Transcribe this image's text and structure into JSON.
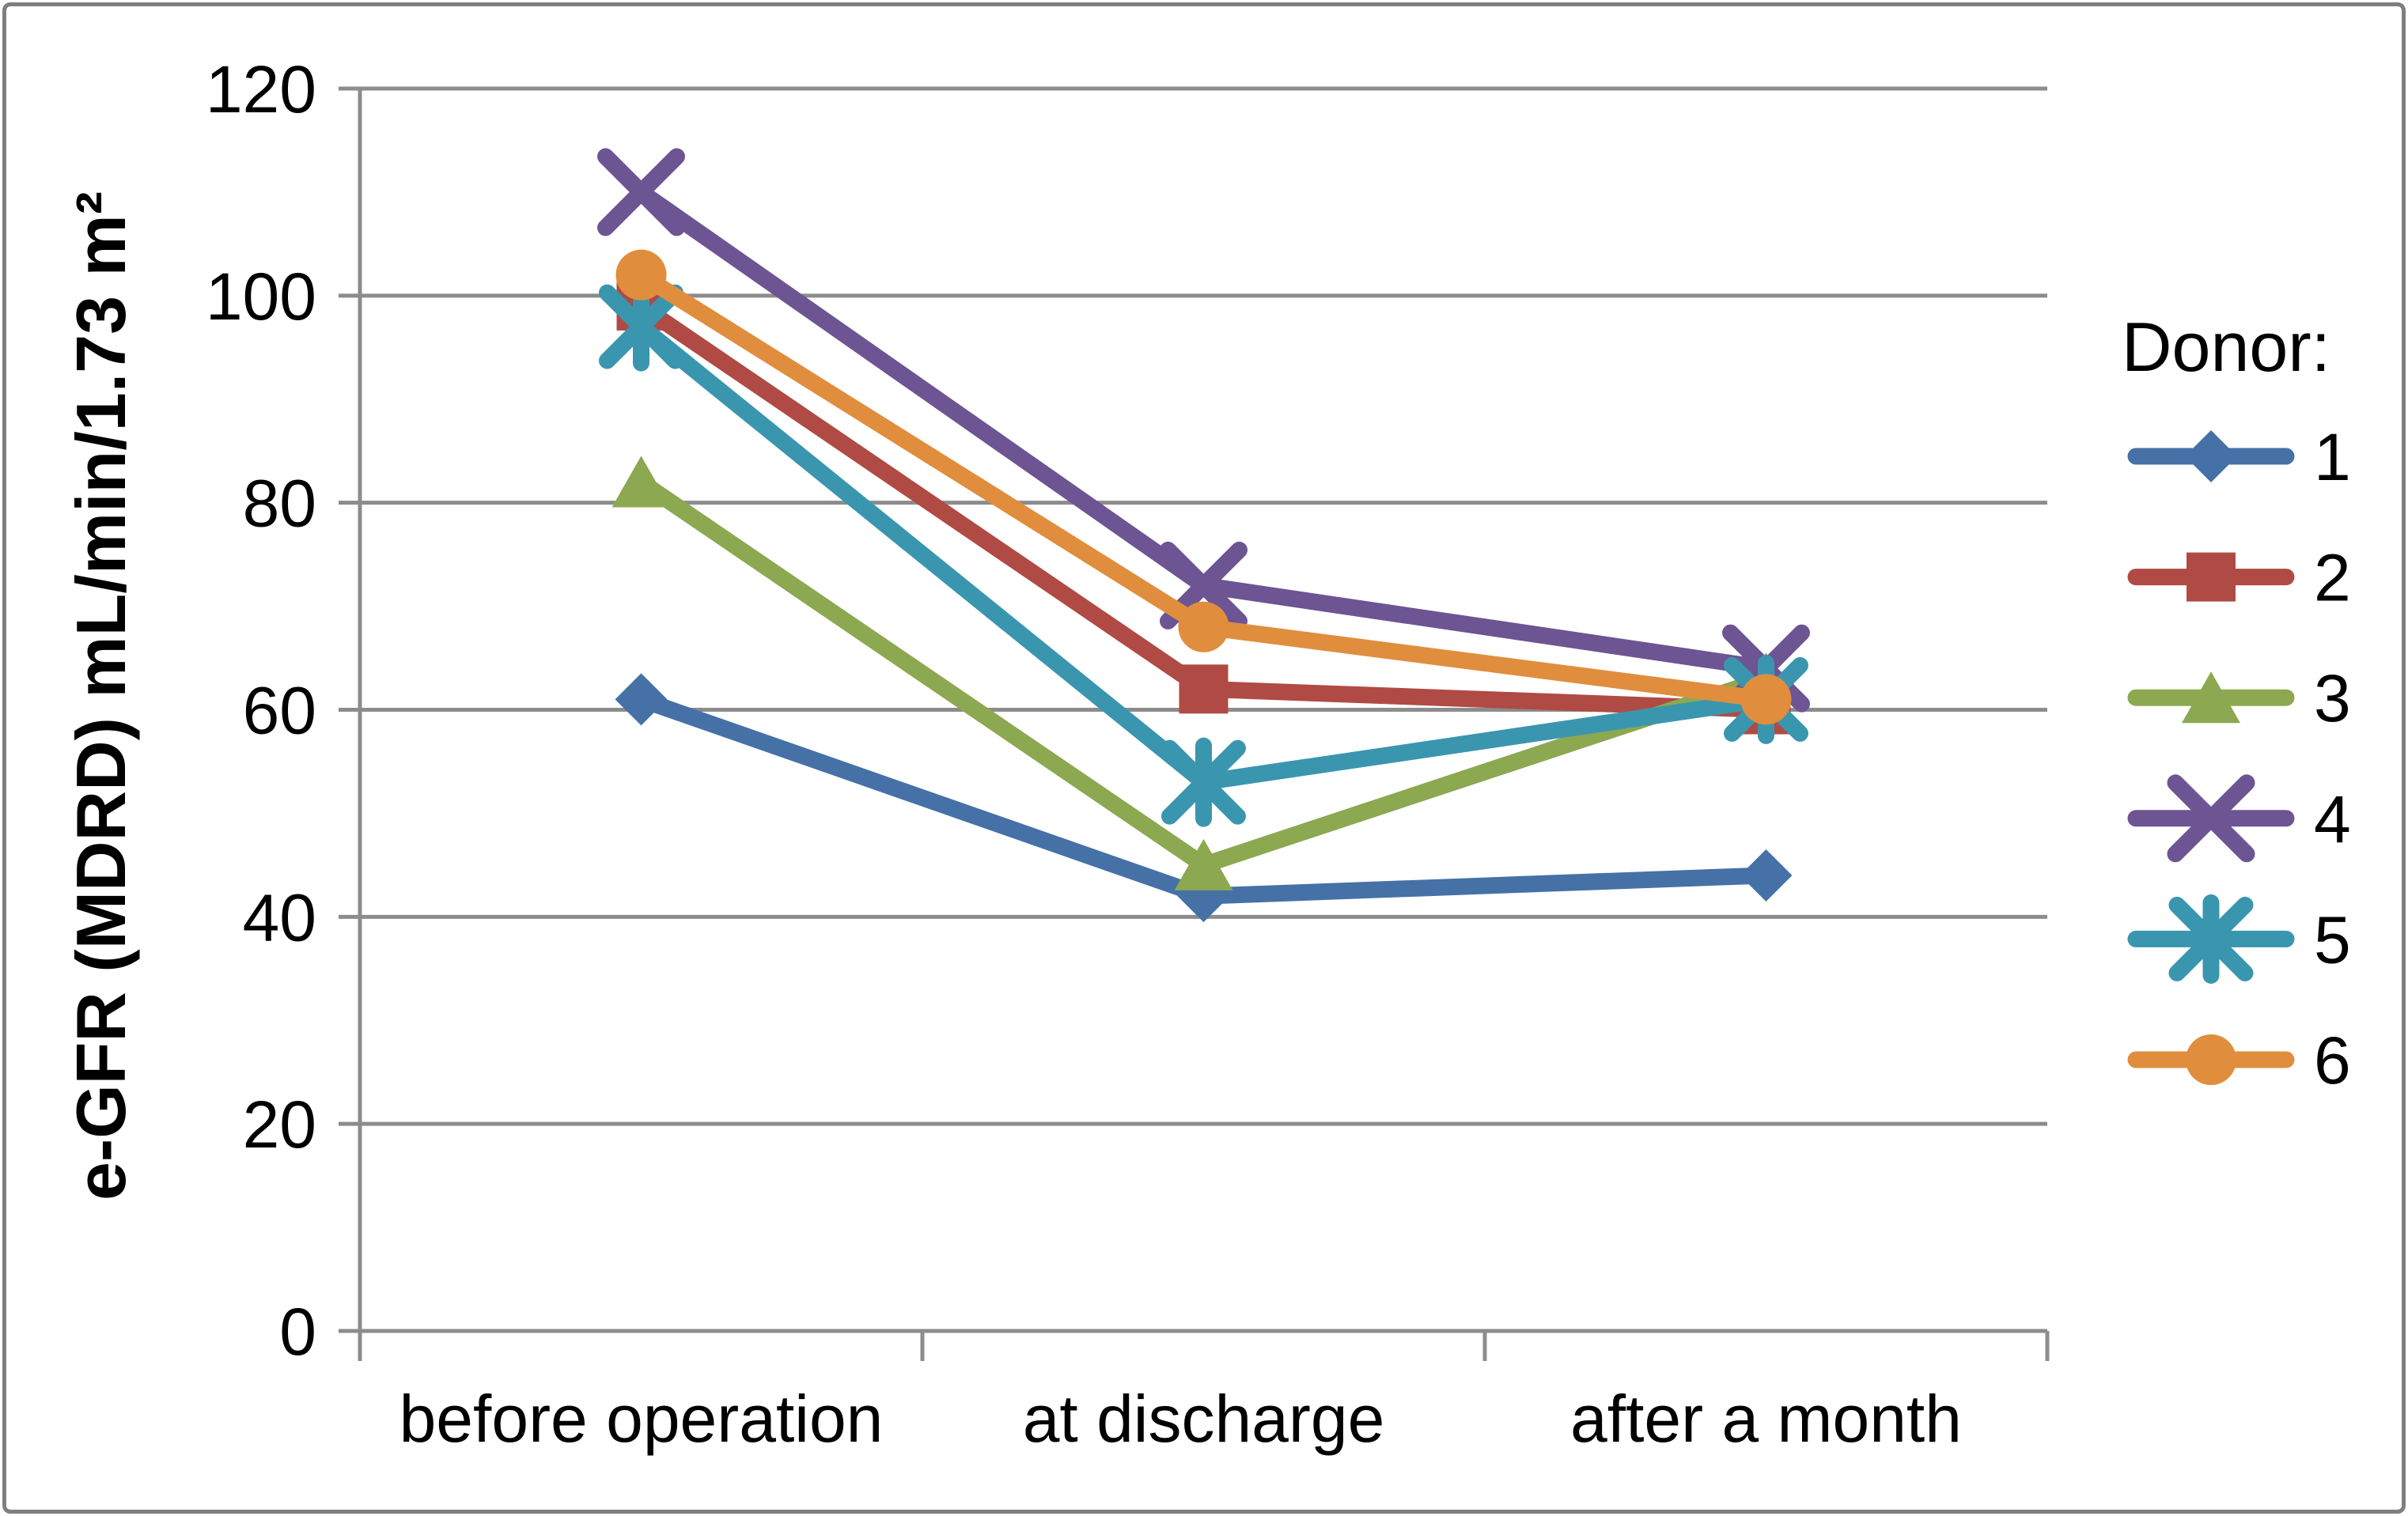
{
  "colors": {
    "background": "#FFFFFF",
    "border": "#7F7F7F",
    "grid": "#8C8C8C",
    "axis": "#8C8C8C",
    "text": "#000000"
  },
  "chart_data": {
    "type": "line",
    "categories": [
      "before operation",
      "at discharge",
      "after a month"
    ],
    "series": [
      {
        "name": "1",
        "marker": "diamond",
        "color": "#4571A7",
        "values": [
          61,
          42,
          44
        ]
      },
      {
        "name": "2",
        "marker": "square",
        "color": "#AF4B44",
        "values": [
          99,
          62,
          60
        ]
      },
      {
        "name": "3",
        "marker": "triangle",
        "color": "#8CA850",
        "values": [
          82,
          45,
          63
        ]
      },
      {
        "name": "4",
        "marker": "x",
        "color": "#6D5492",
        "values": [
          110,
          72,
          64
        ]
      },
      {
        "name": "5",
        "marker": "asterisk",
        "color": "#3A96AE",
        "values": [
          97,
          53,
          61
        ]
      },
      {
        "name": "6",
        "marker": "circle",
        "color": "#E08E3D",
        "values": [
          102,
          68,
          61
        ]
      }
    ],
    "ylabel": "e-GFR (MDRD) mL/min/1.73 m²",
    "ylim": [
      0,
      120
    ],
    "yticks": [
      0,
      20,
      40,
      60,
      80,
      100,
      120
    ],
    "legend_title": "Donor:",
    "legend_position": "right",
    "grid": true
  }
}
